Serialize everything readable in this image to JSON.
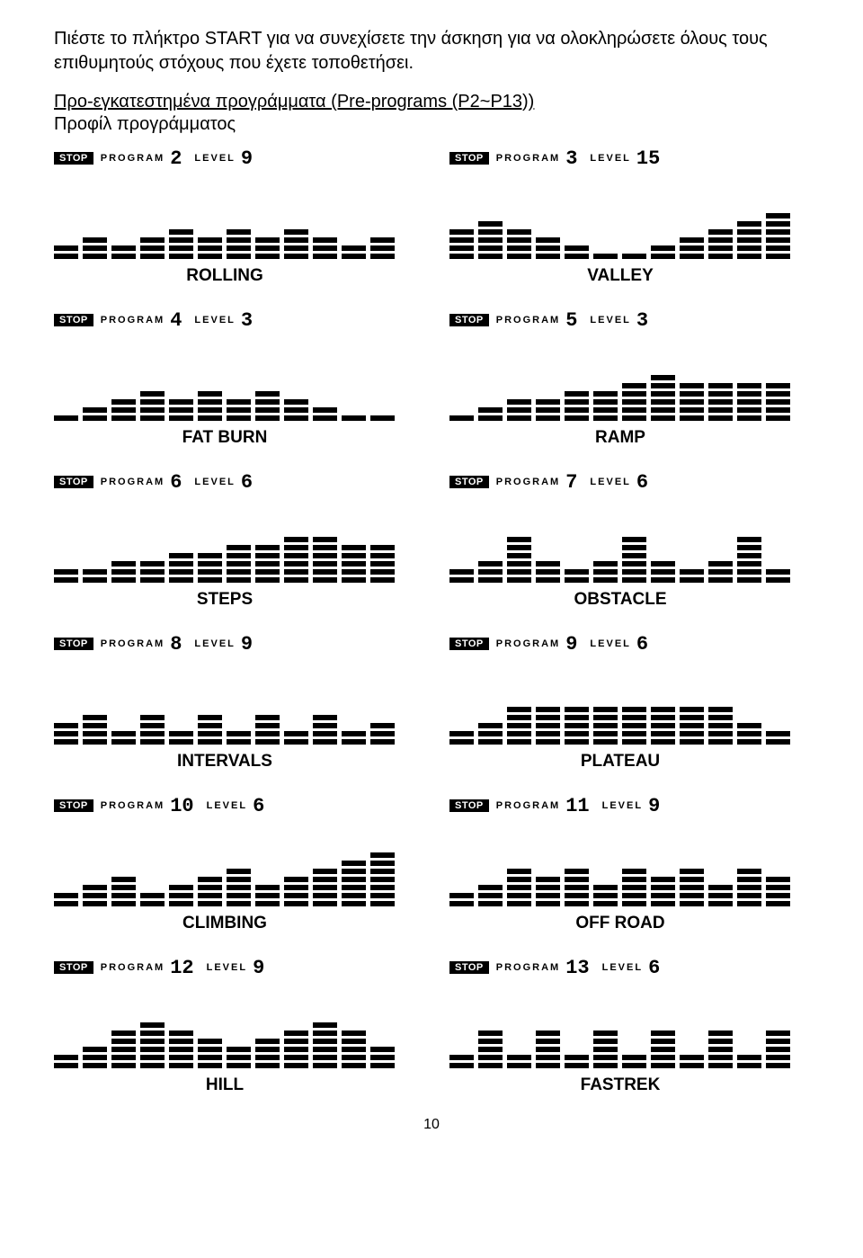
{
  "intro": "Πιέστε το πλήκτρο START για να συνεχίσετε την άσκηση για να ολοκληρώσετε όλους τους επιθυμητούς στόχους που έχετε τοποθετήσει.",
  "section_title": "Προ-εγκατεστημένα προγράμματα (Pre-programs (P2~P13))",
  "section_sub": "Προφίλ προγράμματος",
  "stop_label": "STOP",
  "program_label": "PROGRAM",
  "level_label": "LEVEL",
  "page_number": "10",
  "programs": [
    {
      "program": "2",
      "level": "9",
      "name": "ROLLING",
      "bars": [
        2,
        3,
        2,
        3,
        4,
        3,
        4,
        3,
        4,
        3,
        2,
        3
      ]
    },
    {
      "program": "3",
      "level": "15",
      "name": "VALLEY",
      "bars": [
        4,
        5,
        4,
        3,
        2,
        1,
        1,
        2,
        3,
        4,
        5,
        6
      ]
    },
    {
      "program": "4",
      "level": "3",
      "name": "FAT BURN",
      "bars": [
        1,
        2,
        3,
        4,
        3,
        4,
        3,
        4,
        3,
        2,
        1,
        1
      ]
    },
    {
      "program": "5",
      "level": "3",
      "name": "RAMP",
      "bars": [
        1,
        2,
        3,
        3,
        4,
        4,
        5,
        6,
        5,
        5,
        5,
        5
      ]
    },
    {
      "program": "6",
      "level": "6",
      "name": "STEPS",
      "bars": [
        2,
        2,
        3,
        3,
        4,
        4,
        5,
        5,
        6,
        6,
        5,
        5
      ]
    },
    {
      "program": "7",
      "level": "6",
      "name": "OBSTACLE",
      "bars": [
        2,
        3,
        6,
        3,
        2,
        3,
        6,
        3,
        2,
        3,
        6,
        2
      ]
    },
    {
      "program": "8",
      "level": "9",
      "name": "INTERVALS",
      "bars": [
        3,
        4,
        2,
        4,
        2,
        4,
        2,
        4,
        2,
        4,
        2,
        3
      ]
    },
    {
      "program": "9",
      "level": "6",
      "name": "PLATEAU",
      "bars": [
        2,
        3,
        5,
        5,
        5,
        5,
        5,
        5,
        5,
        5,
        3,
        2
      ]
    },
    {
      "program": "10",
      "level": "6",
      "name": "CLIMBING",
      "bars": [
        2,
        3,
        4,
        2,
        3,
        4,
        5,
        3,
        4,
        5,
        6,
        7
      ]
    },
    {
      "program": "11",
      "level": "9",
      "name": "OFF ROAD",
      "bars": [
        2,
        3,
        5,
        4,
        5,
        3,
        5,
        4,
        5,
        3,
        5,
        4
      ]
    },
    {
      "program": "12",
      "level": "9",
      "name": "HILL",
      "bars": [
        2,
        3,
        5,
        6,
        5,
        4,
        3,
        4,
        5,
        6,
        5,
        3
      ]
    },
    {
      "program": "13",
      "level": "6",
      "name": "FASTREK",
      "bars": [
        2,
        5,
        2,
        5,
        2,
        5,
        2,
        5,
        2,
        5,
        2,
        5
      ]
    }
  ]
}
